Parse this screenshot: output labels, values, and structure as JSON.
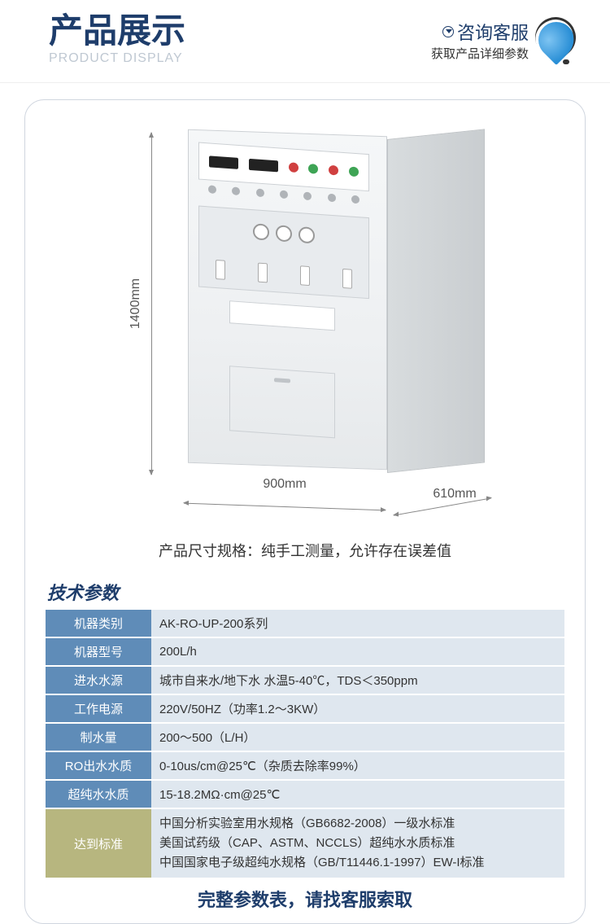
{
  "header": {
    "title_cn": "产品展示",
    "title_en": "PRODUCT DISPLAY",
    "service_line1": "咨询客服",
    "service_line2": "获取产品详细参数"
  },
  "dimensions": {
    "height": "1400mm",
    "width": "900mm",
    "depth": "610mm",
    "note": "产品尺寸规格：纯手工测量，允许存在误差值"
  },
  "spec": {
    "title": "技术参数",
    "rows": [
      {
        "label": "机器类别",
        "value": "AK-RO-UP-200系列"
      },
      {
        "label": "机器型号",
        "value": "200L/h"
      },
      {
        "label": "进水水源",
        "value": "城市自来水/地下水 水温5-40℃，TDS＜350ppm"
      },
      {
        "label": "工作电源",
        "value": "220V/50HZ（功率1.2～3KW）"
      },
      {
        "label": "制水量",
        "value": "200～500（L/H）"
      },
      {
        "label": "RO出水水质",
        "value": "0-10us/cm@25℃（杂质去除率99%）"
      },
      {
        "label": "超纯水水质",
        "value": "15-18.2MΩ·cm@25℃"
      }
    ],
    "standards_label": "达到标准",
    "standards": [
      "中国分析实验室用水规格（GB6682-2008）一级水标准",
      "美国试药级（CAP、ASTM、NCCLS）超纯水水质标准",
      "中国国家电子级超纯水规格（GB/T11446.1-1997）EW-I标准"
    ]
  },
  "footer": "完整参数表，请找客服索取",
  "colors": {
    "primary": "#1e3d6b",
    "label_bg": "#5f8cb8",
    "value_bg": "#dfe7ef",
    "standards_label_bg": "#b7b67f",
    "subtitle": "#bfc8d2"
  }
}
